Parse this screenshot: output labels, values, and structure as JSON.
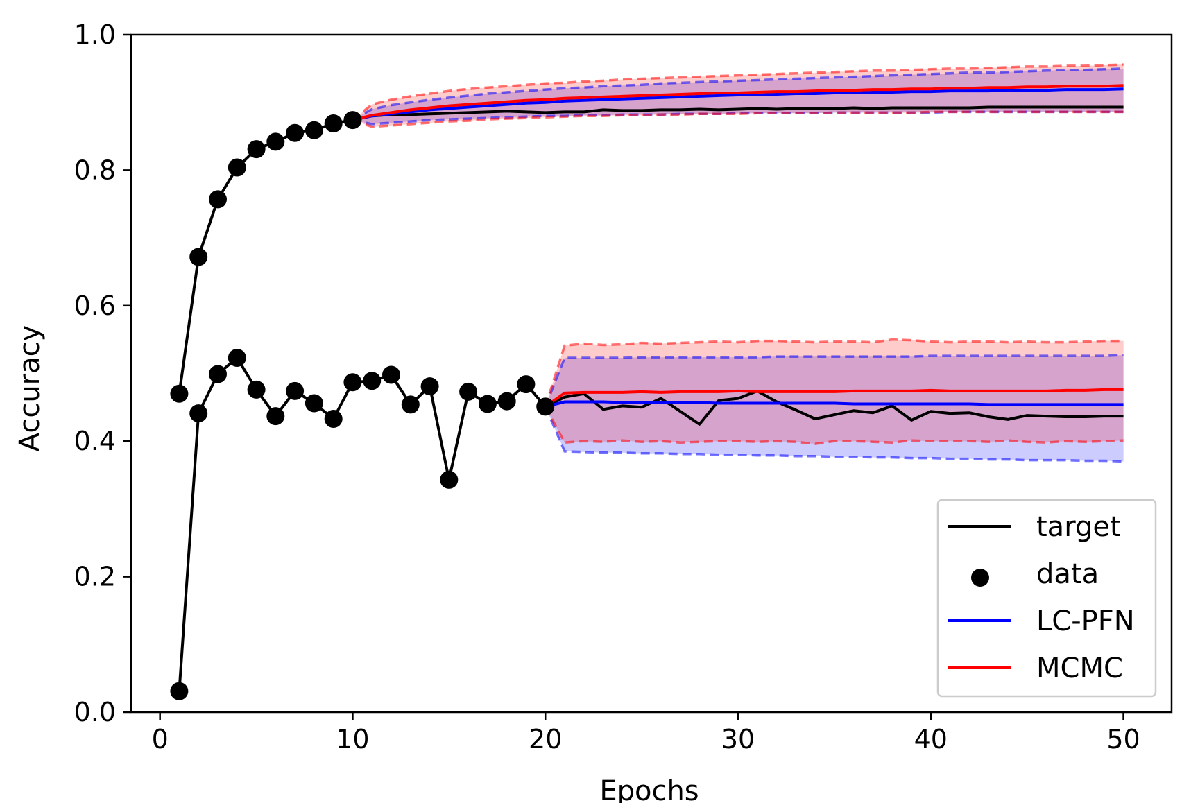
{
  "chart_data": {
    "type": "line",
    "xlabel": "Epochs",
    "ylabel": "Accuracy",
    "xlim": [
      -1.5,
      52.5
    ],
    "ylim": [
      0.0,
      1.0
    ],
    "xticks": [
      0,
      10,
      20,
      30,
      40,
      50
    ],
    "yticks": [
      0.0,
      0.2,
      0.4,
      0.6,
      0.8,
      1.0
    ],
    "xtick_labels": [
      "0",
      "10",
      "20",
      "30",
      "40",
      "50"
    ],
    "ytick_labels": [
      "0.0",
      "0.2",
      "0.4",
      "0.6",
      "0.8",
      "1.0"
    ],
    "grid": false,
    "legend_position": "lower-right",
    "legend": [
      {
        "label": "target",
        "kind": "line",
        "color": "#000000"
      },
      {
        "label": "data",
        "kind": "marker",
        "color": "#000000"
      },
      {
        "label": "LC-PFN",
        "kind": "line",
        "color": "#0000ff"
      },
      {
        "label": "MCMC",
        "kind": "line",
        "color": "#ff0000"
      }
    ],
    "colors": {
      "target": "#000000",
      "data": "#000000",
      "lcpfn": "#0000ff",
      "mcmc": "#ff0000",
      "lcpfn_band": "rgba(0,0,255,0.2)",
      "mcmc_band": "rgba(255,0,0,0.2)"
    },
    "curves": [
      {
        "name": "curve-upper",
        "target": {
          "x": [
            1,
            2,
            3,
            4,
            5,
            6,
            7,
            8,
            9,
            10,
            11,
            12,
            13,
            14,
            15,
            16,
            17,
            18,
            19,
            20,
            21,
            22,
            23,
            24,
            25,
            26,
            27,
            28,
            29,
            30,
            31,
            32,
            33,
            34,
            35,
            36,
            37,
            38,
            39,
            40,
            41,
            42,
            43,
            44,
            45,
            46,
            47,
            48,
            49,
            50
          ],
          "y": [
            0.47,
            0.672,
            0.757,
            0.804,
            0.831,
            0.842,
            0.855,
            0.859,
            0.869,
            0.874,
            0.88,
            0.882,
            0.882,
            0.883,
            0.884,
            0.885,
            0.886,
            0.887,
            0.886,
            0.885,
            0.886,
            0.886,
            0.889,
            0.888,
            0.888,
            0.889,
            0.889,
            0.89,
            0.889,
            0.89,
            0.891,
            0.89,
            0.891,
            0.891,
            0.891,
            0.892,
            0.891,
            0.892,
            0.892,
            0.892,
            0.892,
            0.892,
            0.893,
            0.893,
            0.893,
            0.893,
            0.893,
            0.893,
            0.893,
            0.893
          ]
        },
        "data": {
          "x": [
            1,
            2,
            3,
            4,
            5,
            6,
            7,
            8,
            9,
            10
          ],
          "y": [
            0.47,
            0.672,
            0.757,
            0.804,
            0.831,
            0.842,
            0.855,
            0.859,
            0.869,
            0.874
          ]
        },
        "prediction_x": [
          10,
          11,
          12,
          13,
          14,
          15,
          16,
          17,
          18,
          19,
          20,
          21,
          22,
          23,
          24,
          25,
          26,
          27,
          28,
          29,
          30,
          31,
          32,
          33,
          34,
          35,
          36,
          37,
          38,
          39,
          40,
          41,
          42,
          43,
          44,
          45,
          46,
          47,
          48,
          49,
          50
        ],
        "lcpfn": {
          "mean": [
            0.874,
            0.88,
            0.883,
            0.886,
            0.889,
            0.891,
            0.893,
            0.895,
            0.897,
            0.899,
            0.9,
            0.902,
            0.903,
            0.904,
            0.905,
            0.906,
            0.907,
            0.908,
            0.909,
            0.91,
            0.911,
            0.911,
            0.912,
            0.913,
            0.913,
            0.914,
            0.914,
            0.915,
            0.915,
            0.916,
            0.916,
            0.917,
            0.917,
            0.917,
            0.918,
            0.918,
            0.918,
            0.919,
            0.919,
            0.919,
            0.92
          ],
          "lower": [
            0.874,
            0.868,
            0.87,
            0.872,
            0.874,
            0.875,
            0.876,
            0.877,
            0.878,
            0.879,
            0.88,
            0.88,
            0.881,
            0.881,
            0.882,
            0.882,
            0.882,
            0.883,
            0.883,
            0.883,
            0.884,
            0.884,
            0.884,
            0.884,
            0.884,
            0.885,
            0.885,
            0.885,
            0.885,
            0.885,
            0.885,
            0.886,
            0.886,
            0.886,
            0.886,
            0.886,
            0.886,
            0.886,
            0.886,
            0.886,
            0.886
          ],
          "upper": [
            0.874,
            0.89,
            0.896,
            0.9,
            0.904,
            0.907,
            0.91,
            0.913,
            0.915,
            0.917,
            0.919,
            0.921,
            0.922,
            0.924,
            0.925,
            0.926,
            0.928,
            0.929,
            0.93,
            0.931,
            0.932,
            0.933,
            0.934,
            0.935,
            0.936,
            0.937,
            0.938,
            0.939,
            0.94,
            0.941,
            0.942,
            0.943,
            0.944,
            0.944,
            0.945,
            0.946,
            0.947,
            0.948,
            0.948,
            0.949,
            0.95
          ]
        },
        "mcmc": {
          "mean": [
            0.874,
            0.881,
            0.885,
            0.889,
            0.892,
            0.895,
            0.897,
            0.899,
            0.901,
            0.903,
            0.904,
            0.906,
            0.907,
            0.908,
            0.909,
            0.91,
            0.911,
            0.912,
            0.913,
            0.914,
            0.914,
            0.915,
            0.916,
            0.916,
            0.917,
            0.918,
            0.918,
            0.919,
            0.919,
            0.92,
            0.92,
            0.921,
            0.921,
            0.922,
            0.922,
            0.923,
            0.923,
            0.924,
            0.924,
            0.924,
            0.925
          ],
          "lower": [
            0.874,
            0.864,
            0.866,
            0.868,
            0.87,
            0.872,
            0.873,
            0.875,
            0.876,
            0.877,
            0.878,
            0.879,
            0.88,
            0.88,
            0.881,
            0.881,
            0.882,
            0.882,
            0.883,
            0.883,
            0.883,
            0.884,
            0.884,
            0.884,
            0.884,
            0.885,
            0.885,
            0.885,
            0.885,
            0.885,
            0.886,
            0.886,
            0.886,
            0.886,
            0.886,
            0.886,
            0.886,
            0.886,
            0.886,
            0.886,
            0.886
          ],
          "upper": [
            0.874,
            0.897,
            0.904,
            0.909,
            0.913,
            0.917,
            0.92,
            0.922,
            0.924,
            0.926,
            0.928,
            0.929,
            0.931,
            0.932,
            0.934,
            0.935,
            0.936,
            0.937,
            0.938,
            0.939,
            0.94,
            0.941,
            0.942,
            0.943,
            0.944,
            0.945,
            0.946,
            0.947,
            0.947,
            0.948,
            0.949,
            0.95,
            0.95,
            0.951,
            0.952,
            0.953,
            0.953,
            0.954,
            0.954,
            0.955,
            0.956
          ]
        }
      },
      {
        "name": "curve-lower",
        "target": {
          "x": [
            1,
            2,
            3,
            4,
            5,
            6,
            7,
            8,
            9,
            10,
            11,
            12,
            13,
            14,
            15,
            16,
            17,
            18,
            19,
            20,
            21,
            22,
            23,
            24,
            25,
            26,
            27,
            28,
            29,
            30,
            31,
            32,
            33,
            34,
            35,
            36,
            37,
            38,
            39,
            40,
            41,
            42,
            43,
            44,
            45,
            46,
            47,
            48,
            49,
            50
          ],
          "y": [
            0.031,
            0.441,
            0.499,
            0.523,
            0.476,
            0.437,
            0.474,
            0.456,
            0.433,
            0.487,
            0.489,
            0.498,
            0.454,
            0.481,
            0.343,
            0.473,
            0.455,
            0.459,
            0.484,
            0.451,
            0.465,
            0.47,
            0.447,
            0.452,
            0.45,
            0.463,
            0.444,
            0.425,
            0.46,
            0.463,
            0.474,
            0.458,
            0.446,
            0.433,
            0.439,
            0.445,
            0.442,
            0.452,
            0.431,
            0.444,
            0.441,
            0.442,
            0.436,
            0.432,
            0.438,
            0.437,
            0.436,
            0.436,
            0.437,
            0.437
          ]
        },
        "data": {
          "x": [
            1,
            2,
            3,
            4,
            5,
            6,
            7,
            8,
            9,
            10,
            11,
            12,
            13,
            14,
            15,
            16,
            17,
            18,
            19,
            20
          ],
          "y": [
            0.031,
            0.441,
            0.499,
            0.523,
            0.476,
            0.437,
            0.474,
            0.456,
            0.433,
            0.487,
            0.489,
            0.498,
            0.454,
            0.481,
            0.343,
            0.473,
            0.455,
            0.459,
            0.484,
            0.451
          ]
        },
        "prediction_x": [
          20,
          21,
          22,
          23,
          24,
          25,
          26,
          27,
          28,
          29,
          30,
          31,
          32,
          33,
          34,
          35,
          36,
          37,
          38,
          39,
          40,
          41,
          42,
          43,
          44,
          45,
          46,
          47,
          48,
          49,
          50
        ],
        "lcpfn": {
          "mean": [
            0.451,
            0.458,
            0.458,
            0.458,
            0.457,
            0.457,
            0.457,
            0.457,
            0.457,
            0.456,
            0.456,
            0.456,
            0.456,
            0.456,
            0.456,
            0.456,
            0.455,
            0.455,
            0.455,
            0.455,
            0.455,
            0.455,
            0.455,
            0.454,
            0.454,
            0.454,
            0.454,
            0.454,
            0.454,
            0.454,
            0.454
          ],
          "lower": [
            0.451,
            0.385,
            0.384,
            0.383,
            0.383,
            0.382,
            0.382,
            0.381,
            0.381,
            0.38,
            0.38,
            0.379,
            0.379,
            0.378,
            0.378,
            0.377,
            0.377,
            0.376,
            0.376,
            0.375,
            0.375,
            0.374,
            0.374,
            0.373,
            0.373,
            0.372,
            0.372,
            0.372,
            0.371,
            0.371,
            0.37
          ],
          "upper": [
            0.451,
            0.523,
            0.523,
            0.523,
            0.523,
            0.524,
            0.524,
            0.524,
            0.524,
            0.524,
            0.524,
            0.524,
            0.525,
            0.525,
            0.525,
            0.525,
            0.525,
            0.525,
            0.525,
            0.525,
            0.526,
            0.526,
            0.526,
            0.526,
            0.526,
            0.526,
            0.526,
            0.526,
            0.526,
            0.526,
            0.527
          ]
        },
        "mcmc": {
          "mean": [
            0.451,
            0.471,
            0.472,
            0.472,
            0.472,
            0.473,
            0.472,
            0.473,
            0.473,
            0.473,
            0.474,
            0.473,
            0.473,
            0.473,
            0.473,
            0.473,
            0.474,
            0.474,
            0.474,
            0.474,
            0.475,
            0.474,
            0.474,
            0.474,
            0.474,
            0.474,
            0.474,
            0.475,
            0.475,
            0.476,
            0.476
          ],
          "lower": [
            0.451,
            0.398,
            0.4,
            0.399,
            0.401,
            0.399,
            0.4,
            0.398,
            0.399,
            0.4,
            0.4,
            0.399,
            0.4,
            0.399,
            0.396,
            0.4,
            0.4,
            0.399,
            0.398,
            0.401,
            0.4,
            0.4,
            0.4,
            0.399,
            0.401,
            0.399,
            0.398,
            0.4,
            0.399,
            0.4,
            0.401
          ],
          "upper": [
            0.451,
            0.541,
            0.544,
            0.542,
            0.543,
            0.545,
            0.544,
            0.545,
            0.546,
            0.547,
            0.546,
            0.548,
            0.548,
            0.547,
            0.546,
            0.547,
            0.547,
            0.546,
            0.55,
            0.549,
            0.547,
            0.546,
            0.547,
            0.547,
            0.546,
            0.547,
            0.546,
            0.546,
            0.547,
            0.548,
            0.548
          ]
        }
      }
    ]
  }
}
